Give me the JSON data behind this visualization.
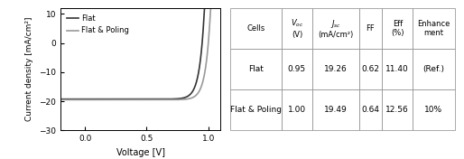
{
  "plot": {
    "xlim": [
      -0.2,
      1.1
    ],
    "ylim": [
      -30,
      12
    ],
    "xlabel": "Voltage [V]",
    "ylabel": "Current density [mA/cm²]",
    "xticks": [
      0.0,
      0.5,
      1.0
    ],
    "yticks": [
      -30,
      -20,
      -10,
      0,
      10
    ],
    "legend": [
      "Flat",
      "Flat & Poling"
    ],
    "flat_color": "#333333",
    "poling_color": "#999999",
    "flat_params": {
      "Voc": 0.95,
      "Jsc": -19.26,
      "FF": 0.62
    },
    "poling_params": {
      "Voc": 1.0,
      "Jsc": -19.49,
      "FF": 0.64
    }
  },
  "table": {
    "col_labels": [
      "Cells",
      "Vₒₑ\n(V)",
      "Jₜₑ\n(mA/cm²)",
      "FF",
      "Eff\n(%)",
      "Enhance\nment"
    ],
    "rows": [
      [
        "Flat",
        "0.95",
        "19.26",
        "0.62",
        "11.40",
        "(Ref.)"
      ],
      [
        "Flat & Poling",
        "1.00",
        "19.49",
        "0.64",
        "12.56",
        "10%"
      ]
    ]
  }
}
